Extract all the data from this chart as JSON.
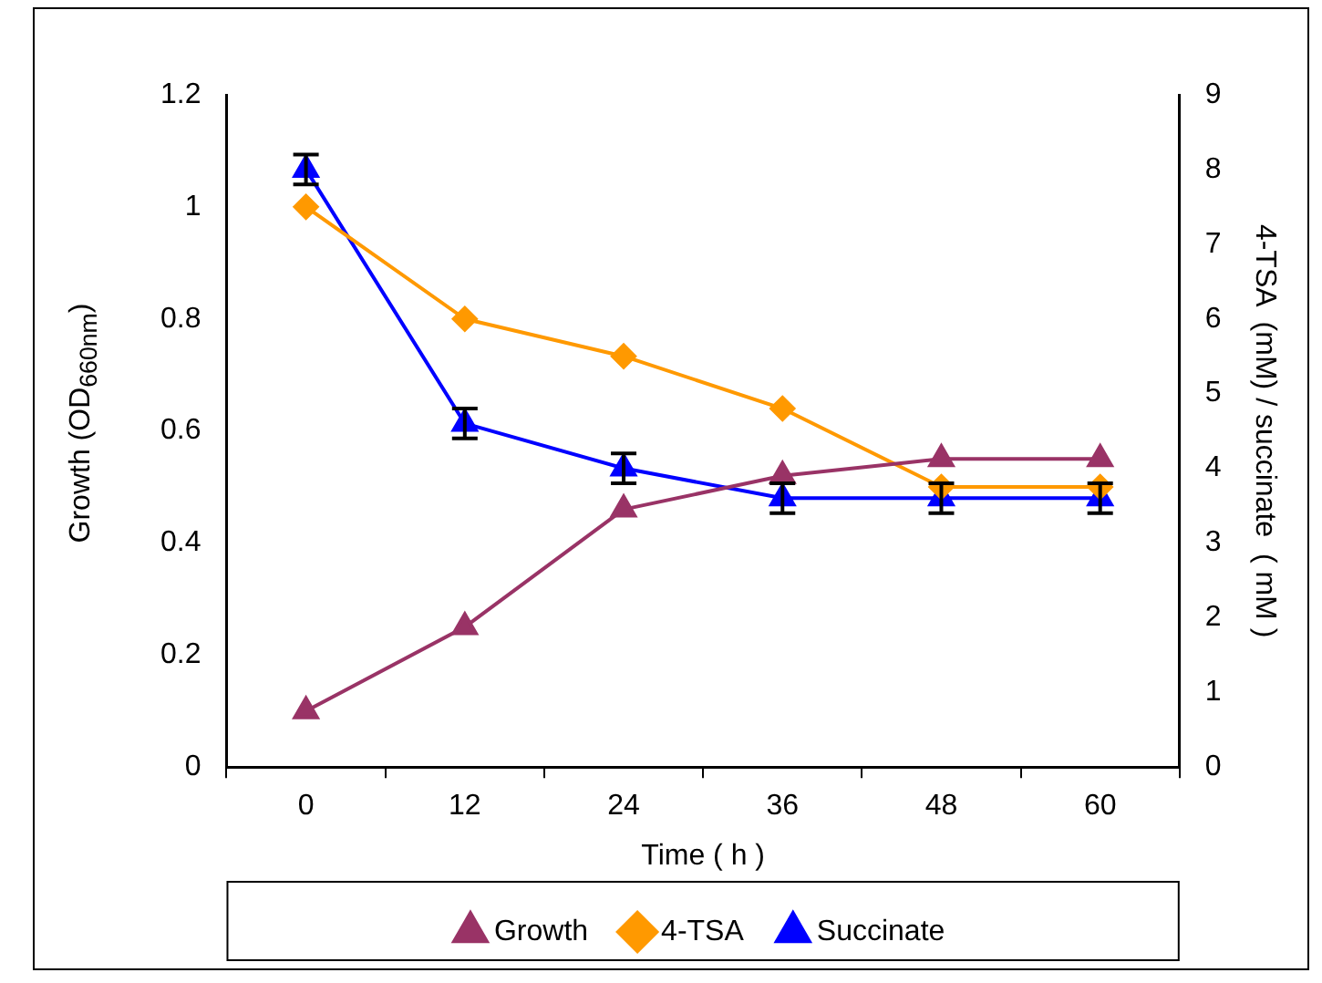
{
  "chart_data": {
    "type": "line",
    "xlabel": "Time ( h )",
    "ylabel": "Growth (OD$_{660nm}$)",
    "y2label": "4-TSA  (mM) / succinate  ( mM )",
    "categories": [
      "0",
      "12",
      "24",
      "36",
      "48",
      "60"
    ],
    "series": [
      {
        "name": "Growth",
        "color": "#993366",
        "marker": "triangle",
        "values": [
          0.1,
          0.25,
          0.46,
          0.52,
          0.55,
          0.55
        ]
      },
      {
        "name": "4-TSA",
        "color": "#ff9900",
        "marker": "diamond",
        "axis": "y2",
        "values": [
          7.5,
          6.0,
          5.5,
          4.8,
          3.75,
          3.75
        ]
      },
      {
        "name": "Succinate",
        "color": "#0000ff",
        "marker": "triangle",
        "axis": "y2",
        "values": [
          8.0,
          4.6,
          4.0,
          3.6,
          3.6,
          3.6
        ],
        "errors": [
          0.2,
          0.2,
          0.2,
          0.2,
          0.2,
          0.2
        ]
      }
    ],
    "ylim": [
      0,
      1.2
    ],
    "yticks": [
      0,
      0.2,
      0.4,
      0.6,
      0.8,
      1,
      1.2
    ],
    "y2lim": [
      0,
      9
    ],
    "y2ticks": [
      0,
      1,
      2,
      3,
      4,
      5,
      6,
      7,
      8,
      9
    ],
    "grid": false,
    "legend": "bottom",
    "line_style": "solid"
  }
}
